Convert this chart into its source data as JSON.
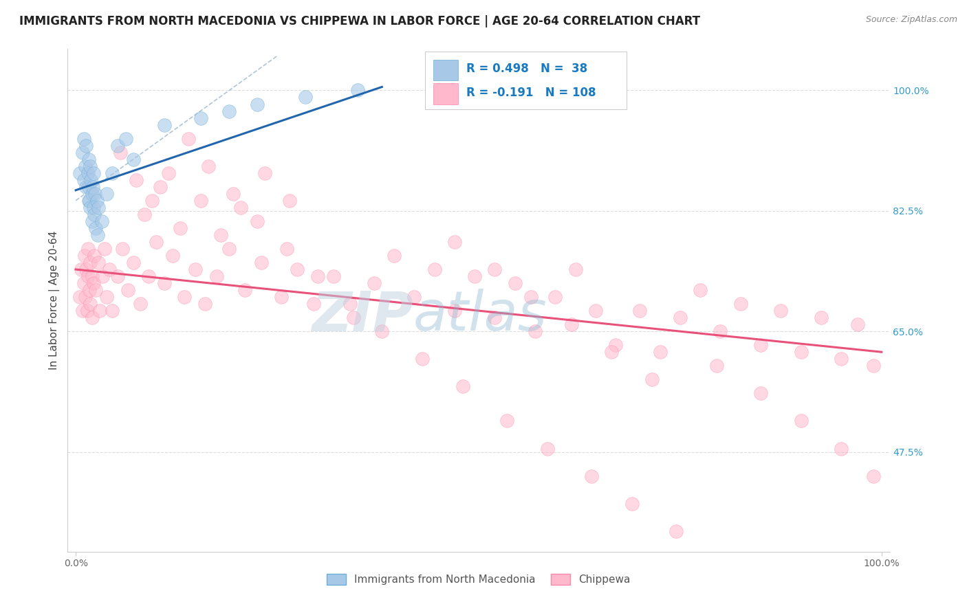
{
  "title": "IMMIGRANTS FROM NORTH MACEDONIA VS CHIPPEWA IN LABOR FORCE | AGE 20-64 CORRELATION CHART",
  "source": "Source: ZipAtlas.com",
  "ylabel": "In Labor Force | Age 20-64",
  "xlim": [
    -0.01,
    1.01
  ],
  "ylim": [
    0.33,
    1.06
  ],
  "x_tick_positions": [
    0.0,
    1.0
  ],
  "x_tick_labels": [
    "0.0%",
    "100.0%"
  ],
  "y_tick_positions": [
    0.475,
    0.65,
    0.825,
    1.0
  ],
  "y_tick_labels": [
    "47.5%",
    "65.0%",
    "82.5%",
    "100.0%"
  ],
  "legend_line1": "R = 0.498   N =  38",
  "legend_line2": "R = -0.191   N = 108",
  "color_blue": "#a8c8e8",
  "color_blue_edge": "#6baed6",
  "color_pink": "#ffb8cc",
  "color_pink_edge": "#ff88aa",
  "color_blue_line": "#2166ac",
  "color_pink_line": "#e8517a",
  "color_dashed_line": "#b0c4d8",
  "watermark_zip": "ZIP",
  "watermark_atlas": "atlas",
  "grid_color": "#dddddd",
  "blue_x": [
    0.005,
    0.008,
    0.01,
    0.01,
    0.012,
    0.013,
    0.013,
    0.015,
    0.016,
    0.016,
    0.016,
    0.017,
    0.018,
    0.018,
    0.019,
    0.02,
    0.02,
    0.021,
    0.022,
    0.022,
    0.023,
    0.024,
    0.025,
    0.026,
    0.027,
    0.028,
    0.032,
    0.038,
    0.045,
    0.052,
    0.062,
    0.072,
    0.11,
    0.155,
    0.19,
    0.225,
    0.285,
    0.35
  ],
  "blue_y": [
    0.88,
    0.91,
    0.87,
    0.93,
    0.89,
    0.86,
    0.92,
    0.88,
    0.84,
    0.9,
    0.86,
    0.84,
    0.89,
    0.83,
    0.87,
    0.85,
    0.81,
    0.86,
    0.83,
    0.88,
    0.82,
    0.85,
    0.8,
    0.84,
    0.79,
    0.83,
    0.81,
    0.85,
    0.88,
    0.92,
    0.93,
    0.9,
    0.95,
    0.96,
    0.97,
    0.98,
    0.99,
    1.0
  ],
  "pink_x": [
    0.005,
    0.007,
    0.008,
    0.01,
    0.011,
    0.012,
    0.013,
    0.014,
    0.015,
    0.015,
    0.017,
    0.018,
    0.018,
    0.02,
    0.02,
    0.022,
    0.023,
    0.025,
    0.028,
    0.03,
    0.033,
    0.036,
    0.038,
    0.042,
    0.045,
    0.052,
    0.058,
    0.065,
    0.072,
    0.08,
    0.09,
    0.1,
    0.11,
    0.12,
    0.135,
    0.148,
    0.16,
    0.175,
    0.19,
    0.21,
    0.23,
    0.255,
    0.275,
    0.295,
    0.32,
    0.345,
    0.37,
    0.395,
    0.42,
    0.445,
    0.47,
    0.495,
    0.52,
    0.545,
    0.57,
    0.595,
    0.62,
    0.645,
    0.67,
    0.7,
    0.725,
    0.75,
    0.775,
    0.8,
    0.825,
    0.85,
    0.875,
    0.9,
    0.925,
    0.95,
    0.97,
    0.99,
    0.085,
    0.105,
    0.13,
    0.155,
    0.18,
    0.205,
    0.235,
    0.265,
    0.055,
    0.075,
    0.095,
    0.115,
    0.14,
    0.165,
    0.195,
    0.225,
    0.262,
    0.3,
    0.34,
    0.38,
    0.43,
    0.48,
    0.535,
    0.585,
    0.64,
    0.69,
    0.745,
    0.795,
    0.85,
    0.9,
    0.95,
    0.99,
    0.47,
    0.52,
    0.565,
    0.615,
    0.665,
    0.715
  ],
  "pink_y": [
    0.7,
    0.74,
    0.68,
    0.72,
    0.76,
    0.7,
    0.74,
    0.68,
    0.73,
    0.77,
    0.71,
    0.75,
    0.69,
    0.73,
    0.67,
    0.72,
    0.76,
    0.71,
    0.75,
    0.68,
    0.73,
    0.77,
    0.7,
    0.74,
    0.68,
    0.73,
    0.77,
    0.71,
    0.75,
    0.69,
    0.73,
    0.78,
    0.72,
    0.76,
    0.7,
    0.74,
    0.69,
    0.73,
    0.77,
    0.71,
    0.75,
    0.7,
    0.74,
    0.69,
    0.73,
    0.67,
    0.72,
    0.76,
    0.7,
    0.74,
    0.68,
    0.73,
    0.67,
    0.72,
    0.65,
    0.7,
    0.74,
    0.68,
    0.63,
    0.68,
    0.62,
    0.67,
    0.71,
    0.65,
    0.69,
    0.63,
    0.68,
    0.62,
    0.67,
    0.61,
    0.66,
    0.6,
    0.82,
    0.86,
    0.8,
    0.84,
    0.79,
    0.83,
    0.88,
    0.84,
    0.91,
    0.87,
    0.84,
    0.88,
    0.93,
    0.89,
    0.85,
    0.81,
    0.77,
    0.73,
    0.69,
    0.65,
    0.61,
    0.57,
    0.52,
    0.48,
    0.44,
    0.4,
    0.36,
    0.6,
    0.56,
    0.52,
    0.48,
    0.44,
    0.78,
    0.74,
    0.7,
    0.66,
    0.62,
    0.58
  ],
  "blue_line_x0": 0.0,
  "blue_line_x1": 0.38,
  "blue_line_y0": 0.855,
  "blue_line_y1": 1.005,
  "pink_line_x0": 0.0,
  "pink_line_x1": 1.0,
  "pink_line_y0": 0.74,
  "pink_line_y1": 0.62,
  "dashed_line_x0": 0.0,
  "dashed_line_x1": 0.25,
  "dashed_line_y0": 0.84,
  "dashed_line_y1": 1.05
}
